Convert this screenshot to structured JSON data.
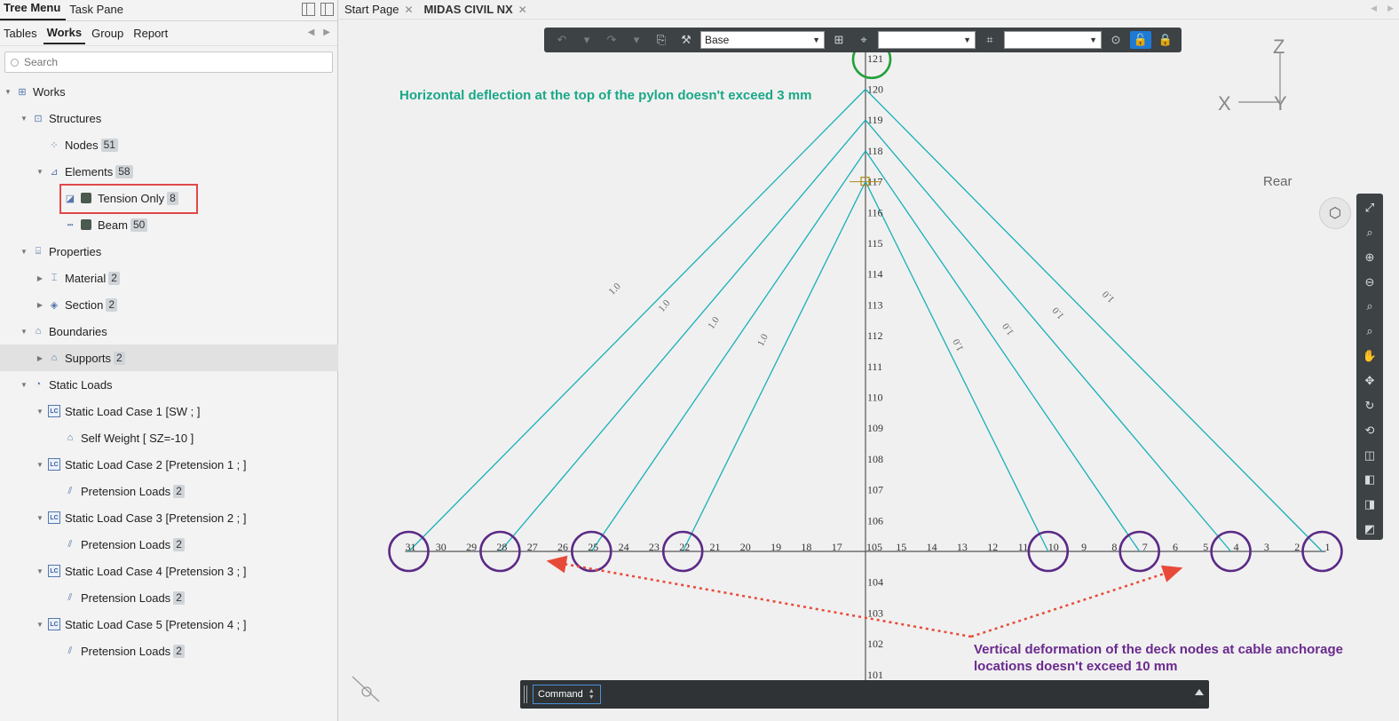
{
  "panel": {
    "tabs": [
      "Tree Menu",
      "Task Pane"
    ],
    "subtabs": [
      "Tables",
      "Works",
      "Group",
      "Report"
    ],
    "search_placeholder": "Search"
  },
  "tree": [
    {
      "label": "Works",
      "expanded": true,
      "icon": "works-icon"
    },
    {
      "label": "Structures",
      "expanded": true,
      "icon": "structures-icon"
    },
    {
      "label": "Nodes",
      "count": "51",
      "icon": "nodes-icon"
    },
    {
      "label": "Elements",
      "count": "58",
      "expanded": true,
      "icon": "elements-icon"
    },
    {
      "label": "Tension Only",
      "count": "8",
      "icon": "tension-only-icon"
    },
    {
      "label": "Beam",
      "count": "50",
      "icon": "beam-icon"
    },
    {
      "label": "Properties",
      "expanded": true,
      "icon": "properties-icon"
    },
    {
      "label": "Material",
      "count": "2",
      "icon": "material-icon"
    },
    {
      "label": "Section",
      "count": "2",
      "icon": "section-icon"
    },
    {
      "label": "Boundaries",
      "expanded": true,
      "icon": "boundaries-icon"
    },
    {
      "label": "Supports",
      "count": "2",
      "icon": "supports-icon"
    },
    {
      "label": "Static Loads",
      "expanded": true,
      "icon": "static-loads-icon"
    },
    {
      "label": "Static Load Case 1 [SW ; ]",
      "icon": "load-case-icon"
    },
    {
      "label": "Self Weight [ SZ=-10 ]",
      "icon": "self-weight-icon"
    },
    {
      "label": "Static Load Case 2 [Pretension 1 ; ]",
      "icon": "load-case-icon"
    },
    {
      "label": "Pretension Loads",
      "count": "2",
      "icon": "pretension-icon"
    },
    {
      "label": "Static Load Case 3 [Pretension 2 ; ]",
      "icon": "load-case-icon"
    },
    {
      "label": "Pretension Loads",
      "count": "2",
      "icon": "pretension-icon"
    },
    {
      "label": "Static Load Case 4 [Pretension 3 ; ]",
      "icon": "load-case-icon"
    },
    {
      "label": "Pretension Loads",
      "count": "2",
      "icon": "pretension-icon"
    },
    {
      "label": "Static Load Case 5 [Pretension 4 ; ]",
      "icon": "load-case-icon"
    },
    {
      "label": "Pretension Loads",
      "count": "2",
      "icon": "pretension-icon"
    }
  ],
  "doc_tabs": [
    "Start Page",
    "MIDAS CIVIL NX"
  ],
  "toolbar": {
    "base_select": "Base",
    "select2": "",
    "select3": ""
  },
  "viewport": {
    "axis_z": "Z",
    "axis_x": "X",
    "axis_y": "Y",
    "view_label": "Rear",
    "annotation_top": "Horizontal deflection at the top of the pylon doesn't exceed 3 mm",
    "annotation_bottom_1": "Vertical deformation of the deck nodes at cable anchorage",
    "annotation_bottom_2": "locations doesn't exceed 10 mm",
    "deck_left_nodes": [
      "31",
      "30",
      "29",
      "28",
      "27",
      "26",
      "25",
      "24",
      "23",
      "22",
      "21",
      "20",
      "19",
      "18",
      "17"
    ],
    "pylon_base_node": "105",
    "deck_right_nodes": [
      "15",
      "14",
      "13",
      "12",
      "11",
      "10",
      "9",
      "8",
      "7",
      "6",
      "5",
      "4",
      "3",
      "2",
      "1"
    ],
    "pylon_nodes": [
      "121",
      "120",
      "119",
      "118",
      "117",
      "116",
      "115",
      "114",
      "113",
      "112",
      "111",
      "110",
      "109",
      "108",
      "107",
      "106"
    ],
    "below_deck_nodes": [
      "104",
      "103",
      "102",
      "101"
    ],
    "cable_labels": [
      "1.0",
      "1.0",
      "1.0",
      "1.0",
      "1.0",
      "1.0",
      "1.0",
      "1.0"
    ]
  },
  "command": {
    "label": "Command"
  },
  "colors": {
    "cable": "#17b0b8",
    "circle_purple": "#5b2a86",
    "circle_green": "#22a13a",
    "annotation_green": "#1aa888",
    "annotation_purple": "#6a2a8e",
    "arrow_red": "#e84a3a",
    "highlight_red": "#e04848"
  }
}
